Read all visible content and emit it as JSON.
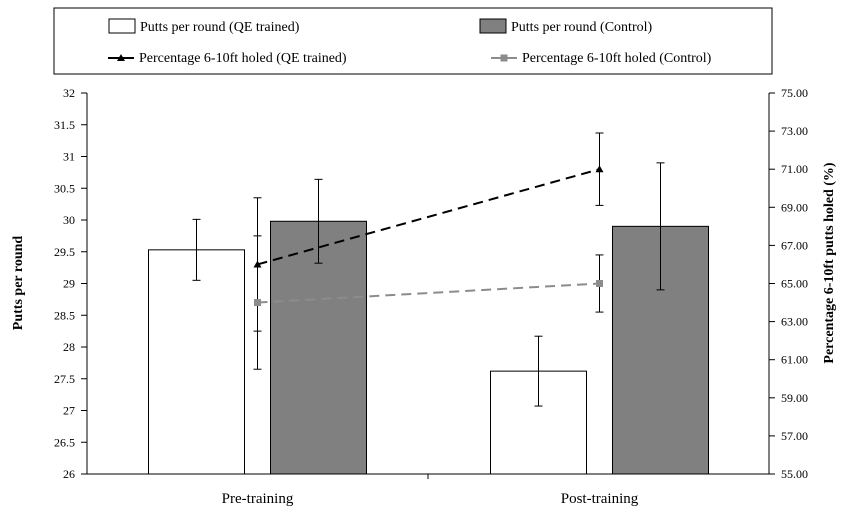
{
  "chart_data": {
    "type": "bar",
    "categories": [
      "Pre-training",
      "Post-training"
    ],
    "ylabel": "Putts per round",
    "ylabel_right": "Percentage 6-10ft putts holed  (%)",
    "ylim": [
      26,
      32
    ],
    "ylim_right": [
      55,
      75
    ],
    "yticks": [
      "26",
      "26.5",
      "27",
      "27.5",
      "28",
      "28.5",
      "29",
      "29.5",
      "30",
      "30.5",
      "31",
      "31.5",
      "32"
    ],
    "yticks_right": [
      "55.00",
      "57.00",
      "59.00",
      "61.00",
      "63.00",
      "65.00",
      "67.00",
      "69.00",
      "71.00",
      "73.00",
      "75.00"
    ],
    "legend_position": "top",
    "grid": false,
    "bar_series": [
      {
        "name": "Putts per round (QE trained)",
        "values": [
          29.53,
          27.62
        ],
        "error": [
          0.48,
          0.55
        ],
        "color": "#ffffff"
      },
      {
        "name": "Putts per round (Control)",
        "values": [
          29.98,
          29.9
        ],
        "error": [
          0.66,
          1.0
        ],
        "color": "#808080"
      }
    ],
    "line_series": [
      {
        "name": "Percentage 6-10ft holed (QE trained)",
        "values": [
          66.0,
          71.0
        ],
        "error": [
          3.5,
          1.9
        ],
        "color": "#000000",
        "marker": "triangle",
        "axis": "right"
      },
      {
        "name": "Percentage 6-10ft holed (Control)",
        "values": [
          64.0,
          65.0
        ],
        "error": [
          3.5,
          1.5
        ],
        "color": "#8c8c8c",
        "marker": "square",
        "axis": "right"
      }
    ]
  }
}
